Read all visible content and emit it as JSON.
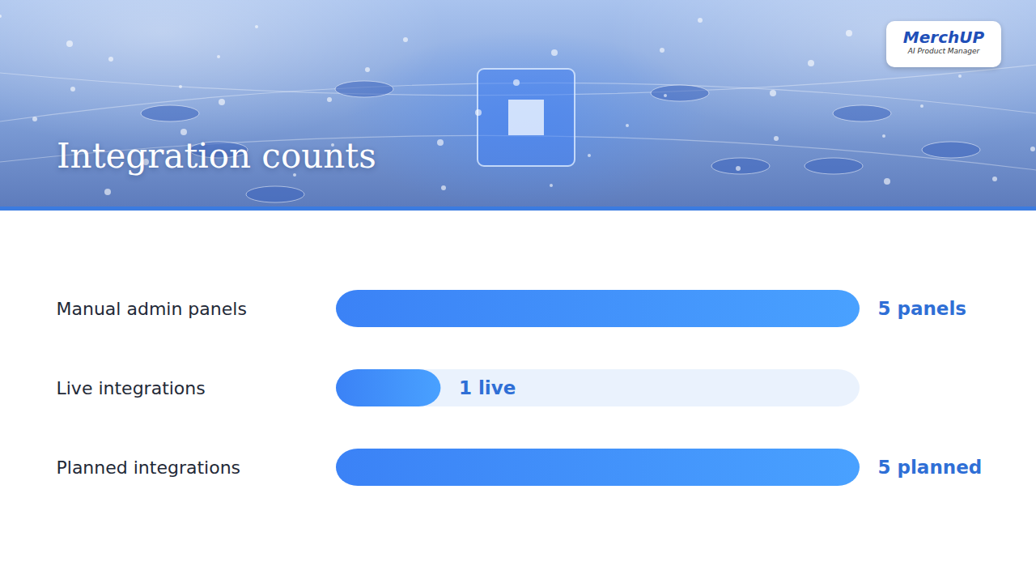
{
  "chart_data": {
    "type": "bar",
    "title": "Integration counts",
    "orientation": "horizontal",
    "categories": [
      "Manual admin panels",
      "Live integrations",
      "Planned integrations"
    ],
    "values": [
      5,
      1,
      5
    ],
    "value_labels": [
      "5 panels",
      "1 live",
      "5 planned"
    ],
    "data_labels": true,
    "color": "#3b82f6",
    "xlim": [
      0,
      5
    ],
    "tick_labels": "y",
    "grid": false,
    "annotations": [
      "MerchUP",
      "AI Product Manager"
    ]
  }
}
